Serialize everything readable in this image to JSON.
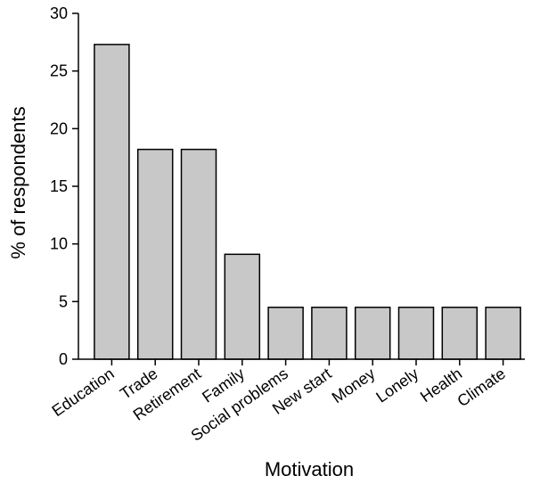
{
  "chart_data": {
    "type": "bar",
    "title": "",
    "xlabel": "Motivation",
    "ylabel": "% of respondents",
    "ylim": [
      0,
      30
    ],
    "yticks": [
      0,
      5,
      10,
      15,
      20,
      25,
      30
    ],
    "grid": false,
    "categories": [
      "Education",
      "Trade",
      "Retirement",
      "Family",
      "Social problems",
      "New start",
      "Money",
      "Lonely",
      "Health",
      "Climate"
    ],
    "values": [
      27.3,
      18.2,
      18.2,
      9.1,
      4.5,
      4.5,
      4.5,
      4.5,
      4.5,
      4.5
    ],
    "colors": {
      "bar_fill": "#c8c8c8",
      "bar_stroke": "#000000"
    }
  }
}
